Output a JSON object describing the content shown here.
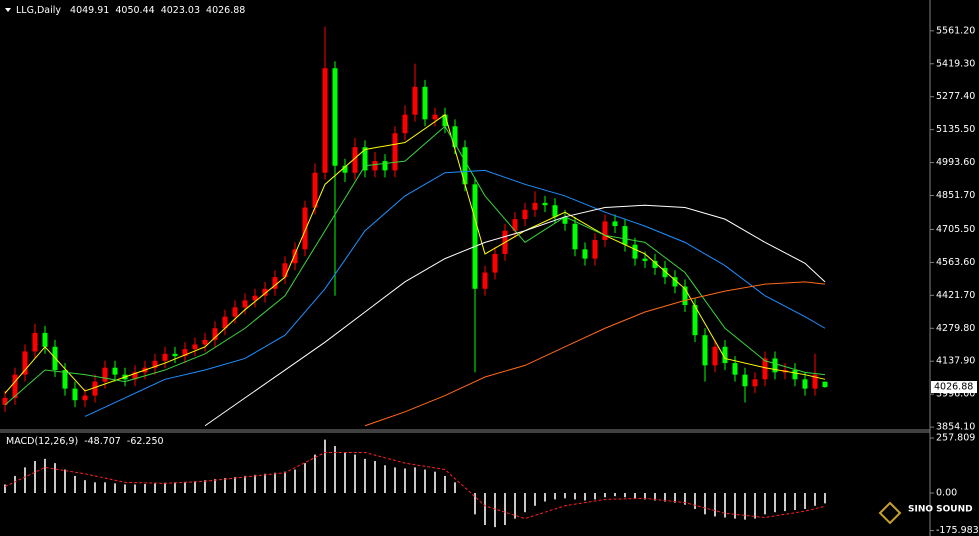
{
  "chart_data": {
    "type": "candlestick",
    "symbol": "LLG,Daily",
    "up_color": "#ff0000",
    "down_color": "#00ff00",
    "grid": false,
    "ylim": [
      3846,
      5694
    ],
    "yticks": [
      {
        "value": 5561.2,
        "label": "5561.20"
      },
      {
        "value": 5419.3,
        "label": "5419.30"
      },
      {
        "value": 5277.4,
        "label": "5277.40"
      },
      {
        "value": 5135.5,
        "label": "5135.50"
      },
      {
        "value": 4993.6,
        "label": "4993.60"
      },
      {
        "value": 4851.7,
        "label": "4851.70"
      },
      {
        "value": 4705.5,
        "label": "4705.50"
      },
      {
        "value": 4563.6,
        "label": "4563.60"
      },
      {
        "value": 4421.7,
        "label": "4421.70"
      },
      {
        "value": 4279.8,
        "label": "4279.80"
      },
      {
        "value": 4137.9,
        "label": "4137.90"
      },
      {
        "value": 3996,
        "label": "3996.00"
      },
      {
        "value": 3854.1,
        "label": "3854.10"
      }
    ],
    "open": [
      3950,
      3980,
      4080,
      4180,
      4260,
      4200,
      4100,
      4020,
      3970,
      3990,
      4050,
      4110,
      4080,
      4060,
      4090,
      4110,
      4140,
      4170,
      4160,
      4190,
      4210,
      4230,
      4280,
      4330,
      4370,
      4400,
      4420,
      4450,
      4500,
      4560,
      4620,
      4800,
      4950,
      5400,
      4980,
      4950,
      5060,
      4960,
      5000,
      4960,
      5120,
      5200,
      5320,
      5180,
      5200,
      5150,
      5060,
      4900,
      4450,
      4520,
      4600,
      4700,
      4750,
      4790,
      4820,
      4810,
      4760,
      4730,
      4620,
      4580,
      4660,
      4740,
      4720,
      4640,
      4580,
      4570,
      4540,
      4500,
      4460,
      4380,
      4250,
      4120,
      4200,
      4130,
      4080,
      4030,
      4060,
      4150,
      4090,
      4100,
      4060,
      4020,
      4049.91
    ],
    "high": [
      4010,
      4110,
      4210,
      4300,
      4290,
      4230,
      4130,
      4050,
      4020,
      4080,
      4140,
      4140,
      4110,
      4120,
      4140,
      4170,
      4200,
      4200,
      4220,
      4240,
      4260,
      4310,
      4360,
      4400,
      4430,
      4450,
      4480,
      4530,
      4590,
      4650,
      4830,
      4990,
      5580,
      5430,
      5010,
      5100,
      5090,
      5040,
      5030,
      5150,
      5240,
      5420,
      5350,
      5230,
      5230,
      5180,
      5090,
      4930,
      4550,
      4630,
      4730,
      4780,
      4820,
      4870,
      4850,
      4840,
      4790,
      4760,
      4650,
      4690,
      4770,
      4770,
      4750,
      4670,
      4610,
      4600,
      4570,
      4530,
      4490,
      4410,
      4280,
      4230,
      4230,
      4160,
      4110,
      4090,
      4180,
      4180,
      4130,
      4130,
      4090,
      4170,
      4050.44
    ],
    "low": [
      3920,
      3950,
      4050,
      4150,
      4170,
      4070,
      3990,
      3940,
      3940,
      3960,
      4020,
      4050,
      4030,
      4030,
      4060,
      4080,
      4110,
      4130,
      4130,
      4160,
      4180,
      4200,
      4250,
      4300,
      4340,
      4370,
      4390,
      4420,
      4470,
      4530,
      4590,
      4770,
      4920,
      4420,
      4910,
      4920,
      4930,
      4930,
      4930,
      4930,
      5090,
      5170,
      5150,
      5150,
      5120,
      5030,
      4870,
      4090,
      4420,
      4490,
      4570,
      4670,
      4720,
      4760,
      4780,
      4730,
      4700,
      4590,
      4550,
      4550,
      4630,
      4690,
      4610,
      4550,
      4540,
      4510,
      4470,
      4430,
      4350,
      4220,
      4050,
      4090,
      4100,
      4050,
      3960,
      4000,
      4030,
      4060,
      4060,
      4030,
      3990,
      3990,
      4023.03
    ],
    "close": [
      3980,
      4080,
      4180,
      4260,
      4200,
      4100,
      4020,
      3970,
      3990,
      4050,
      4110,
      4080,
      4060,
      4090,
      4110,
      4140,
      4170,
      4160,
      4190,
      4210,
      4230,
      4280,
      4330,
      4370,
      4400,
      4420,
      4450,
      4500,
      4560,
      4620,
      4800,
      4950,
      5400,
      4980,
      4950,
      5060,
      4960,
      5000,
      4960,
      5120,
      5200,
      5320,
      5180,
      5200,
      5150,
      5060,
      4900,
      4450,
      4520,
      4600,
      4700,
      4750,
      4790,
      4820,
      4810,
      4760,
      4730,
      4620,
      4580,
      4660,
      4740,
      4720,
      4640,
      4580,
      4570,
      4540,
      4500,
      4460,
      4380,
      4250,
      4120,
      4200,
      4130,
      4080,
      4030,
      4060,
      4150,
      4090,
      4100,
      4060,
      4020,
      4080,
      4026.88
    ],
    "ma_index": [
      0,
      4,
      8,
      12,
      16,
      20,
      24,
      28,
      32,
      36,
      40,
      44,
      48,
      52,
      56,
      60,
      64,
      68,
      72,
      76,
      80,
      82
    ],
    "moving_averages": [
      {
        "color": "#ffff00",
        "values": [
          4000,
          4200,
          4010,
          4070,
          4130,
          4200,
          4360,
          4500,
          4900,
          5050,
          5080,
          5200,
          4600,
          4700,
          4780,
          4680,
          4600,
          4450,
          4150,
          4110,
          4080,
          4060
        ]
      },
      {
        "color": "#3cd23c",
        "values": [
          3950,
          4100,
          4080,
          4050,
          4100,
          4170,
          4280,
          4420,
          4700,
          4980,
          5000,
          5150,
          4850,
          4650,
          4760,
          4680,
          4650,
          4520,
          4280,
          4140,
          4090,
          4080
        ]
      },
      {
        "color": "#1e90ff",
        "values": [
          null,
          null,
          3900,
          3980,
          4060,
          4100,
          4150,
          4250,
          4450,
          4700,
          4850,
          4950,
          4960,
          4900,
          4850,
          4780,
          4720,
          4650,
          4550,
          4420,
          4330,
          4280
        ]
      },
      {
        "color": "#ffffff",
        "values": [
          null,
          null,
          null,
          null,
          null,
          3860,
          3980,
          4100,
          4220,
          4350,
          4480,
          4580,
          4650,
          4700,
          4760,
          4800,
          4810,
          4800,
          4750,
          4650,
          4560,
          4480
        ]
      },
      {
        "color": "#ff6a1a",
        "values": [
          null,
          null,
          null,
          null,
          null,
          null,
          null,
          null,
          null,
          3860,
          3920,
          3990,
          4070,
          4120,
          4200,
          4280,
          4350,
          4400,
          4440,
          4470,
          4480,
          4470
        ]
      }
    ],
    "macd": {
      "title": "MACD(12,26,9)",
      "current_labels": [
        "-48.707",
        "-62.250"
      ],
      "ylim": [
        -201.6,
        285.9
      ],
      "yticks": [
        257.809,
        {
          "value": 0,
          "label": "0.00"
        },
        -175.983
      ],
      "histogram_color": "#c8c8c8",
      "signal_color": "#ff2020",
      "histogram": [
        40,
        80,
        120,
        150,
        160,
        140,
        110,
        80,
        60,
        50,
        50,
        45,
        40,
        40,
        42,
        45,
        48,
        50,
        52,
        55,
        60,
        65,
        70,
        75,
        80,
        85,
        90,
        95,
        100,
        110,
        140,
        180,
        250,
        220,
        190,
        180,
        160,
        150,
        130,
        120,
        115,
        120,
        110,
        100,
        80,
        50,
        0,
        -100,
        -150,
        -160,
        -150,
        -120,
        -90,
        -60,
        -40,
        -30,
        -25,
        -30,
        -35,
        -30,
        -20,
        -15,
        -20,
        -25,
        -30,
        -35,
        -40,
        -45,
        -55,
        -75,
        -100,
        -110,
        -115,
        -120,
        -125,
        -120,
        -100,
        -90,
        -85,
        -80,
        -75,
        -60,
        -48.707
      ],
      "signal": [
        30,
        120,
        90,
        50,
        45,
        55,
        75,
        95,
        190,
        190,
        140,
        110,
        -60,
        -120,
        -60,
        -30,
        -25,
        -45,
        -95,
        -115,
        -85,
        -62.25
      ]
    },
    "watermark": "SINO SOUND"
  }
}
